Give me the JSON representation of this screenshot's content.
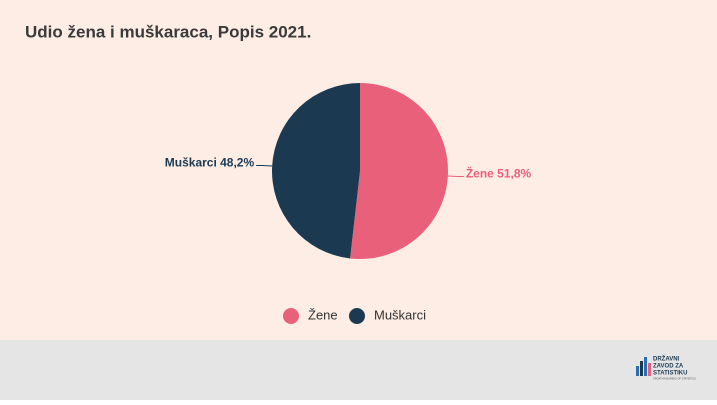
{
  "chart_data": {
    "type": "pie",
    "title": "Udio žena i muškaraca, Popis 2021.",
    "categories": [
      "Žene",
      "Muškarci"
    ],
    "values": [
      51.8,
      48.2
    ],
    "value_labels": [
      "Žene 51,8%",
      "Muškarci 48,2%"
    ],
    "colors": [
      "#e8607a",
      "#1b3a52"
    ],
    "legend": "bottom"
  },
  "footer": {
    "logo": [
      "DRŽAVNI",
      "ZAVOD ZA",
      "STATISTIKU",
      "CROATIAN BUREAU OF STATISTICS"
    ]
  }
}
